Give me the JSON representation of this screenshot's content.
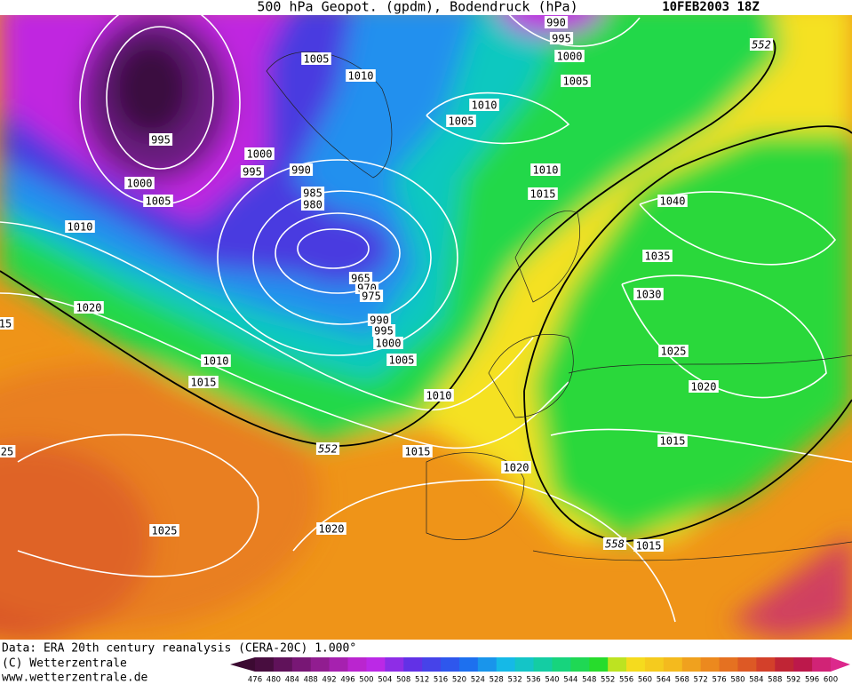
{
  "header": {
    "title": "500 hPa Geopot. (gpdm), Bodendruck (hPa)",
    "date": "10FEB2003 18Z"
  },
  "isobars": {
    "labels": [
      990,
      995,
      1000,
      1005,
      1005,
      1010,
      1010,
      1005,
      995,
      1000,
      995,
      990,
      1000,
      1005,
      985,
      980,
      1010,
      1010,
      1015,
      1040,
      1035,
      1030,
      965,
      970,
      975,
      990,
      995,
      1000,
      1005,
      1020,
      15,
      1010,
      1015,
      1010,
      1025,
      1020,
      1015,
      1015,
      1020,
      25,
      1025,
      1020,
      1015,
      552,
      552,
      558
    ]
  },
  "footer": {
    "lines": [
      "Data: ERA 20th century reanalysis (CERA-20C) 1.000°",
      "(C) Wetterzentrale",
      "www.wetterzentrale.de"
    ]
  },
  "colorbar": {
    "labels": [
      476,
      480,
      484,
      488,
      492,
      496,
      500,
      504,
      508,
      512,
      516,
      520,
      524,
      528,
      532,
      536,
      540,
      544,
      548,
      552,
      556,
      560,
      564,
      568,
      572,
      576,
      580,
      584,
      588,
      592,
      596,
      600
    ]
  }
}
